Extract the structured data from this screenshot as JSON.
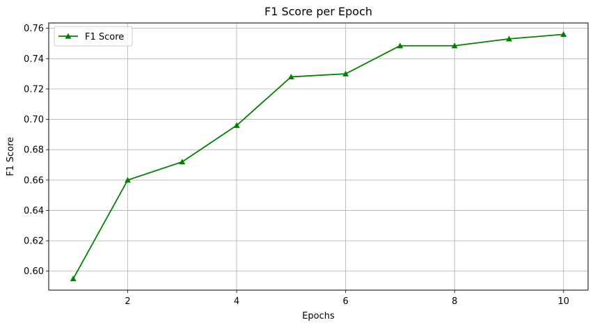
{
  "chart_data": {
    "type": "line",
    "title": "F1 Score per Epoch",
    "xlabel": "Epochs",
    "ylabel": "F1 Score",
    "x": [
      1,
      2,
      3,
      4,
      5,
      6,
      7,
      8,
      9,
      10
    ],
    "series": [
      {
        "name": "F1 Score",
        "values": [
          0.595,
          0.66,
          0.672,
          0.696,
          0.728,
          0.73,
          0.7485,
          0.7485,
          0.753,
          0.756
        ],
        "color": "#008000",
        "marker": "triangle-up"
      }
    ],
    "xlim": [
      0.55,
      10.45
    ],
    "ylim": [
      0.5875,
      0.7635
    ],
    "xticks": [
      2,
      4,
      6,
      8,
      10
    ],
    "xtick_labels": [
      "2",
      "4",
      "6",
      "8",
      "10"
    ],
    "yticks": [
      0.6,
      0.62,
      0.64,
      0.66,
      0.68,
      0.7,
      0.72,
      0.74,
      0.76
    ],
    "ytick_labels": [
      "0.60",
      "0.62",
      "0.64",
      "0.66",
      "0.68",
      "0.70",
      "0.72",
      "0.74",
      "0.76"
    ],
    "grid": true,
    "legend_position": "top-left"
  }
}
